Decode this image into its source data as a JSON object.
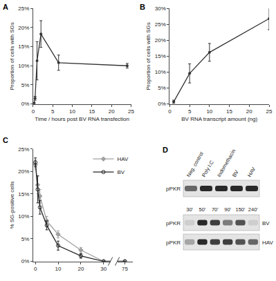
{
  "chart_data": [
    {
      "title": "A",
      "type": "line",
      "xlabel": "Time / hours post BV RNA transfection",
      "ylabel": "Proportion of cells with SGs",
      "xlim": [
        0,
        25
      ],
      "xticks": [
        0,
        5,
        10,
        15,
        20,
        25
      ],
      "ylim": [
        0,
        25
      ],
      "yticks": [
        {
          "value": 0,
          "label": "0%"
        },
        {
          "value": 5,
          "label": "5%"
        },
        {
          "value": 10,
          "label": "10%"
        },
        {
          "value": 15,
          "label": "15%"
        },
        {
          "value": 20,
          "label": "20%"
        },
        {
          "value": 25,
          "label": "25%"
        }
      ],
      "grid": false,
      "x": [
        0.25,
        0.5,
        1,
        2,
        6.5,
        24
      ],
      "series": [
        {
          "color": "#333333",
          "marker": "circle",
          "values": [
            0.2,
            1.5,
            11.3,
            18.3,
            10.8,
            10
          ],
          "error": [
            0.2,
            0.5,
            5,
            3.5,
            2,
            0.6
          ]
        }
      ]
    },
    {
      "title": "B",
      "type": "line",
      "xlabel": "BV RNA transcript amount (ng)",
      "ylabel": "Proportion of cells with SGs",
      "xlim": [
        0,
        25
      ],
      "xticks": [
        0,
        5,
        10,
        15,
        20,
        25
      ],
      "ylim": [
        0,
        30
      ],
      "yticks": [
        {
          "value": 0,
          "label": "0%"
        },
        {
          "value": 5,
          "label": "5%"
        },
        {
          "value": 10,
          "label": "10%"
        },
        {
          "value": 15,
          "label": "15%"
        },
        {
          "value": 20,
          "label": "20%"
        },
        {
          "value": 25,
          "label": "25%"
        },
        {
          "value": 30,
          "label": "30%"
        }
      ],
      "grid": false,
      "x": [
        1,
        5,
        10,
        25
      ],
      "series": [
        {
          "color": "#333333",
          "marker": "circle",
          "values": [
            0.7,
            9.6,
            16.2,
            26.8
          ],
          "error": [
            0.5,
            3,
            2.8,
            3.5
          ]
        }
      ]
    },
    {
      "title": "C",
      "type": "line",
      "ylabel": "% SG-positive cells",
      "xlim": [
        -1,
        77
      ],
      "xbreak": [
        33,
        73
      ],
      "xticks": [
        0,
        10,
        20,
        30,
        75
      ],
      "ylim": [
        0,
        25
      ],
      "yticks": [
        {
          "value": 0,
          "label": "0%"
        },
        {
          "value": 5,
          "label": "5%"
        },
        {
          "value": 10,
          "label": "10%"
        },
        {
          "value": 15,
          "label": "15%"
        },
        {
          "value": 20,
          "label": "20%"
        },
        {
          "value": 25,
          "label": "25%"
        }
      ],
      "grid": false,
      "legend": "upper right",
      "x": [
        0,
        1,
        2,
        5,
        10,
        20,
        30,
        75
      ],
      "series": [
        {
          "name": "HAV",
          "color": "#a0a0a0",
          "marker": "diamond",
          "values": [
            21.5,
            17,
            14.5,
            9,
            6,
            2.5,
            0,
            0
          ],
          "error": [
            1,
            2,
            1.5,
            1,
            0.8,
            0.6,
            0,
            0
          ]
        },
        {
          "name": "BV",
          "color": "#222222",
          "marker": "circle-open",
          "values": [
            22,
            16,
            12,
            8,
            3.5,
            1.2,
            0,
            0
          ],
          "error": [
            1,
            3,
            1.5,
            1,
            1,
            0.5,
            0,
            0
          ]
        }
      ]
    }
  ],
  "blot": {
    "title": "D",
    "top": {
      "row_label": "pPKR",
      "lanes": [
        "Neg. control",
        "Poly I:C",
        "Indomethacin",
        "BV",
        "HAV"
      ],
      "intensity": [
        0.6,
        0.9,
        0.9,
        0.9,
        0.9
      ]
    },
    "bottom": {
      "lanes": [
        "30'",
        "50'",
        "70'",
        "90'",
        "150'",
        "240'"
      ],
      "rows": [
        {
          "label": "pPKR",
          "name": "BV",
          "intensity": [
            0.1,
            0.9,
            0.8,
            0.5,
            0.7,
            0.1
          ]
        },
        {
          "label": "pPKR",
          "name": "HAV",
          "intensity": [
            0.3,
            0.9,
            0.8,
            0.8,
            0.7,
            0.6
          ]
        }
      ]
    }
  }
}
